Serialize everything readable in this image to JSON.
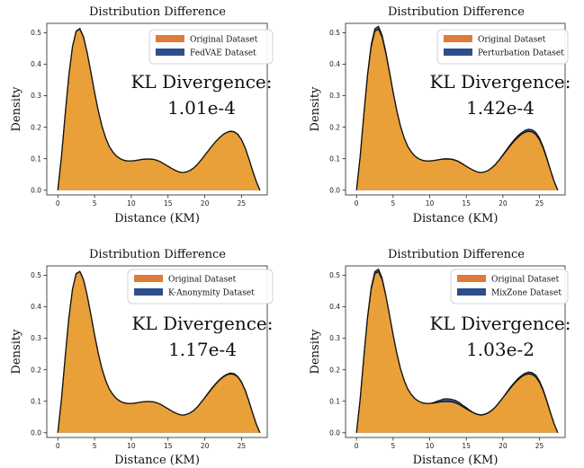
{
  "chart_data": [
    {
      "type": "area",
      "title": "Distribution Difference",
      "xlabel": "Distance (KM)",
      "ylabel": "Density",
      "xlim": [
        -1.5,
        28.5
      ],
      "ylim": [
        -0.015,
        0.53
      ],
      "xticks": [
        0,
        5,
        10,
        15,
        20,
        25
      ],
      "yticks": [
        0.0,
        0.1,
        0.2,
        0.3,
        0.4,
        0.5
      ],
      "legend_location": "top-right",
      "annotation": "KL Divergence:\n1.01e-4",
      "series": [
        {
          "name": "Original Dataset",
          "color": "#f0a236",
          "x": [
            0,
            0.5,
            1,
            1.5,
            2,
            2.5,
            3,
            3.5,
            4,
            4.5,
            5,
            5.5,
            6,
            6.5,
            7,
            7.5,
            8,
            8.5,
            9,
            9.5,
            10,
            10.5,
            11,
            11.5,
            12,
            12.5,
            13,
            13.5,
            14,
            14.5,
            15,
            15.5,
            16,
            16.5,
            17,
            17.5,
            18,
            18.5,
            19,
            19.5,
            20,
            20.5,
            21,
            21.5,
            22,
            22.5,
            23,
            23.5,
            24,
            24.5,
            25,
            25.5,
            26,
            26.5,
            27,
            27.5
          ],
          "y": [
            0.0,
            0.107,
            0.24,
            0.364,
            0.456,
            0.505,
            0.512,
            0.486,
            0.436,
            0.375,
            0.311,
            0.253,
            0.204,
            0.167,
            0.139,
            0.121,
            0.108,
            0.1,
            0.095,
            0.093,
            0.093,
            0.094,
            0.096,
            0.098,
            0.099,
            0.099,
            0.098,
            0.095,
            0.09,
            0.083,
            0.076,
            0.069,
            0.063,
            0.058,
            0.056,
            0.058,
            0.063,
            0.071,
            0.082,
            0.096,
            0.111,
            0.126,
            0.141,
            0.155,
            0.167,
            0.177,
            0.184,
            0.187,
            0.185,
            0.177,
            0.16,
            0.134,
            0.1,
            0.063,
            0.028,
            0.0
          ]
        },
        {
          "name": "FedVAE Dataset",
          "color": "#2d4e8c",
          "x": [
            0,
            0.5,
            1,
            1.5,
            2,
            2.5,
            3,
            3.5,
            4,
            4.5,
            5,
            5.5,
            6,
            6.5,
            7,
            7.5,
            8,
            8.5,
            9,
            9.5,
            10,
            10.5,
            11,
            11.5,
            12,
            12.5,
            13,
            13.5,
            14,
            14.5,
            15,
            15.5,
            16,
            16.5,
            17,
            17.5,
            18,
            18.5,
            19,
            19.5,
            20,
            20.5,
            21,
            21.5,
            22,
            22.5,
            23,
            23.5,
            24,
            24.5,
            25,
            25.5,
            26,
            26.5,
            27,
            27.5
          ],
          "y": [
            0.0,
            0.107,
            0.24,
            0.364,
            0.457,
            0.506,
            0.514,
            0.488,
            0.437,
            0.376,
            0.311,
            0.253,
            0.204,
            0.167,
            0.139,
            0.121,
            0.108,
            0.1,
            0.095,
            0.093,
            0.093,
            0.094,
            0.096,
            0.098,
            0.099,
            0.099,
            0.098,
            0.095,
            0.09,
            0.083,
            0.076,
            0.069,
            0.063,
            0.058,
            0.056,
            0.058,
            0.063,
            0.071,
            0.082,
            0.096,
            0.111,
            0.126,
            0.141,
            0.155,
            0.167,
            0.177,
            0.184,
            0.188,
            0.186,
            0.178,
            0.161,
            0.135,
            0.1,
            0.063,
            0.028,
            0.0
          ]
        }
      ]
    },
    {
      "type": "area",
      "title": "Distribution Difference",
      "xlabel": "Distance (KM)",
      "ylabel": "Density",
      "xlim": [
        -1.5,
        28.5
      ],
      "ylim": [
        -0.015,
        0.53
      ],
      "xticks": [
        0,
        5,
        10,
        15,
        20,
        25
      ],
      "yticks": [
        0.0,
        0.1,
        0.2,
        0.3,
        0.4,
        0.5
      ],
      "legend_location": "top-right",
      "annotation": "KL Divergence:\n1.42e-4",
      "series": [
        {
          "name": "Original Dataset",
          "color": "#f0a236",
          "x": [
            0,
            0.5,
            1,
            1.5,
            2,
            2.5,
            3,
            3.5,
            4,
            4.5,
            5,
            5.5,
            6,
            6.5,
            7,
            7.5,
            8,
            8.5,
            9,
            9.5,
            10,
            10.5,
            11,
            11.5,
            12,
            12.5,
            13,
            13.5,
            14,
            14.5,
            15,
            15.5,
            16,
            16.5,
            17,
            17.5,
            18,
            18.5,
            19,
            19.5,
            20,
            20.5,
            21,
            21.5,
            22,
            22.5,
            23,
            23.5,
            24,
            24.5,
            25,
            25.5,
            26,
            26.5,
            27,
            27.5
          ],
          "y": [
            0.0,
            0.107,
            0.24,
            0.364,
            0.456,
            0.505,
            0.512,
            0.486,
            0.436,
            0.375,
            0.311,
            0.253,
            0.204,
            0.167,
            0.139,
            0.121,
            0.108,
            0.1,
            0.095,
            0.093,
            0.093,
            0.094,
            0.096,
            0.098,
            0.099,
            0.099,
            0.098,
            0.095,
            0.09,
            0.083,
            0.076,
            0.069,
            0.063,
            0.058,
            0.056,
            0.058,
            0.063,
            0.071,
            0.082,
            0.096,
            0.111,
            0.126,
            0.141,
            0.155,
            0.167,
            0.177,
            0.184,
            0.187,
            0.185,
            0.177,
            0.16,
            0.134,
            0.1,
            0.063,
            0.028,
            0.0
          ]
        },
        {
          "name": "Perturbation Dataset",
          "color": "#2d4e8c",
          "x": [
            0,
            0.5,
            1,
            1.5,
            2,
            2.5,
            3,
            3.5,
            4,
            4.5,
            5,
            5.5,
            6,
            6.5,
            7,
            7.5,
            8,
            8.5,
            9,
            9.5,
            10,
            10.5,
            11,
            11.5,
            12,
            12.5,
            13,
            13.5,
            14,
            14.5,
            15,
            15.5,
            16,
            16.5,
            17,
            17.5,
            18,
            18.5,
            19,
            19.5,
            20,
            20.5,
            21,
            21.5,
            22,
            22.5,
            23,
            23.5,
            24,
            24.5,
            25,
            25.5,
            26,
            26.5,
            27,
            27.5
          ],
          "y": [
            0.0,
            0.108,
            0.242,
            0.368,
            0.463,
            0.513,
            0.521,
            0.493,
            0.441,
            0.378,
            0.313,
            0.254,
            0.204,
            0.167,
            0.139,
            0.121,
            0.108,
            0.1,
            0.095,
            0.093,
            0.093,
            0.094,
            0.096,
            0.098,
            0.1,
            0.1,
            0.099,
            0.096,
            0.091,
            0.084,
            0.076,
            0.069,
            0.063,
            0.058,
            0.056,
            0.058,
            0.063,
            0.072,
            0.083,
            0.097,
            0.113,
            0.129,
            0.145,
            0.159,
            0.172,
            0.182,
            0.19,
            0.194,
            0.192,
            0.184,
            0.166,
            0.139,
            0.104,
            0.065,
            0.029,
            0.0
          ]
        }
      ]
    },
    {
      "type": "area",
      "title": "Distribution Difference",
      "xlabel": "Distance (KM)",
      "ylabel": "Density",
      "xlim": [
        -1.5,
        28.5
      ],
      "ylim": [
        -0.015,
        0.53
      ],
      "xticks": [
        0,
        5,
        10,
        15,
        20,
        25
      ],
      "yticks": [
        0.0,
        0.1,
        0.2,
        0.3,
        0.4,
        0.5
      ],
      "legend_location": "top-right",
      "annotation": "KL Divergence:\n1.17e-4",
      "series": [
        {
          "name": "Original Dataset",
          "color": "#f0a236",
          "x": [
            0,
            0.5,
            1,
            1.5,
            2,
            2.5,
            3,
            3.5,
            4,
            4.5,
            5,
            5.5,
            6,
            6.5,
            7,
            7.5,
            8,
            8.5,
            9,
            9.5,
            10,
            10.5,
            11,
            11.5,
            12,
            12.5,
            13,
            13.5,
            14,
            14.5,
            15,
            15.5,
            16,
            16.5,
            17,
            17.5,
            18,
            18.5,
            19,
            19.5,
            20,
            20.5,
            21,
            21.5,
            22,
            22.5,
            23,
            23.5,
            24,
            24.5,
            25,
            25.5,
            26,
            26.5,
            27,
            27.5
          ],
          "y": [
            0.0,
            0.107,
            0.24,
            0.364,
            0.456,
            0.505,
            0.512,
            0.486,
            0.436,
            0.375,
            0.311,
            0.253,
            0.204,
            0.167,
            0.139,
            0.121,
            0.108,
            0.1,
            0.095,
            0.093,
            0.093,
            0.094,
            0.096,
            0.098,
            0.099,
            0.099,
            0.098,
            0.095,
            0.09,
            0.083,
            0.076,
            0.069,
            0.063,
            0.058,
            0.056,
            0.058,
            0.063,
            0.071,
            0.082,
            0.096,
            0.111,
            0.126,
            0.141,
            0.155,
            0.167,
            0.177,
            0.184,
            0.187,
            0.185,
            0.177,
            0.16,
            0.134,
            0.1,
            0.063,
            0.028,
            0.0
          ]
        },
        {
          "name": "K-Anonymity Dataset",
          "color": "#2d4e8c",
          "x": [
            0,
            0.5,
            1,
            1.5,
            2,
            2.5,
            3,
            3.5,
            4,
            4.5,
            5,
            5.5,
            6,
            6.5,
            7,
            7.5,
            8,
            8.5,
            9,
            9.5,
            10,
            10.5,
            11,
            11.5,
            12,
            12.5,
            13,
            13.5,
            14,
            14.5,
            15,
            15.5,
            16,
            16.5,
            17,
            17.5,
            18,
            18.5,
            19,
            19.5,
            20,
            20.5,
            21,
            21.5,
            22,
            22.5,
            23,
            23.5,
            24,
            24.5,
            25,
            25.5,
            26,
            26.5,
            27,
            27.5
          ],
          "y": [
            0.0,
            0.107,
            0.24,
            0.364,
            0.457,
            0.506,
            0.513,
            0.487,
            0.436,
            0.375,
            0.311,
            0.253,
            0.204,
            0.167,
            0.139,
            0.121,
            0.108,
            0.1,
            0.095,
            0.093,
            0.093,
            0.094,
            0.096,
            0.098,
            0.099,
            0.099,
            0.098,
            0.095,
            0.09,
            0.083,
            0.076,
            0.069,
            0.063,
            0.058,
            0.056,
            0.058,
            0.063,
            0.071,
            0.082,
            0.097,
            0.112,
            0.128,
            0.143,
            0.157,
            0.169,
            0.179,
            0.186,
            0.19,
            0.188,
            0.179,
            0.162,
            0.136,
            0.102,
            0.064,
            0.028,
            0.0
          ]
        }
      ]
    },
    {
      "type": "area",
      "title": "Distribution Difference",
      "xlabel": "Distance (KM)",
      "ylabel": "Density",
      "xlim": [
        -1.5,
        28.5
      ],
      "ylim": [
        -0.015,
        0.53
      ],
      "xticks": [
        0,
        5,
        10,
        15,
        20,
        25
      ],
      "yticks": [
        0.0,
        0.1,
        0.2,
        0.3,
        0.4,
        0.5
      ],
      "legend_location": "top-right",
      "annotation": "KL Divergence:\n1.03e-2",
      "series": [
        {
          "name": "Original Dataset",
          "color": "#f0a236",
          "x": [
            0,
            0.5,
            1,
            1.5,
            2,
            2.5,
            3,
            3.5,
            4,
            4.5,
            5,
            5.5,
            6,
            6.5,
            7,
            7.5,
            8,
            8.5,
            9,
            9.5,
            10,
            10.5,
            11,
            11.5,
            12,
            12.5,
            13,
            13.5,
            14,
            14.5,
            15,
            15.5,
            16,
            16.5,
            17,
            17.5,
            18,
            18.5,
            19,
            19.5,
            20,
            20.5,
            21,
            21.5,
            22,
            22.5,
            23,
            23.5,
            24,
            24.5,
            25,
            25.5,
            26,
            26.5,
            27,
            27.5
          ],
          "y": [
            0.0,
            0.107,
            0.24,
            0.364,
            0.456,
            0.505,
            0.512,
            0.486,
            0.436,
            0.375,
            0.311,
            0.253,
            0.204,
            0.167,
            0.139,
            0.121,
            0.108,
            0.1,
            0.095,
            0.093,
            0.093,
            0.094,
            0.096,
            0.098,
            0.099,
            0.099,
            0.098,
            0.095,
            0.09,
            0.083,
            0.076,
            0.069,
            0.063,
            0.058,
            0.056,
            0.058,
            0.063,
            0.071,
            0.082,
            0.096,
            0.111,
            0.126,
            0.141,
            0.155,
            0.167,
            0.177,
            0.184,
            0.187,
            0.185,
            0.177,
            0.16,
            0.134,
            0.1,
            0.063,
            0.028,
            0.0
          ]
        },
        {
          "name": "MixZone Dataset",
          "color": "#2d4e8c",
          "x": [
            0,
            0.5,
            1,
            1.5,
            2,
            2.5,
            3,
            3.5,
            4,
            4.5,
            5,
            5.5,
            6,
            6.5,
            7,
            7.5,
            8,
            8.5,
            9,
            9.5,
            10,
            10.5,
            11,
            11.5,
            12,
            12.5,
            13,
            13.5,
            14,
            14.5,
            15,
            15.5,
            16,
            16.5,
            17,
            17.5,
            18,
            18.5,
            19,
            19.5,
            20,
            20.5,
            21,
            21.5,
            22,
            22.5,
            23,
            23.5,
            24,
            24.5,
            25,
            25.5,
            26,
            26.5,
            27,
            27.5
          ],
          "y": [
            0.0,
            0.108,
            0.243,
            0.368,
            0.462,
            0.512,
            0.52,
            0.492,
            0.438,
            0.375,
            0.311,
            0.253,
            0.204,
            0.167,
            0.139,
            0.121,
            0.108,
            0.1,
            0.095,
            0.093,
            0.093,
            0.096,
            0.1,
            0.104,
            0.108,
            0.108,
            0.106,
            0.103,
            0.097,
            0.088,
            0.08,
            0.071,
            0.064,
            0.059,
            0.057,
            0.059,
            0.064,
            0.072,
            0.083,
            0.097,
            0.112,
            0.128,
            0.144,
            0.158,
            0.171,
            0.181,
            0.189,
            0.193,
            0.191,
            0.183,
            0.165,
            0.138,
            0.103,
            0.065,
            0.029,
            0.0
          ]
        }
      ]
    }
  ]
}
